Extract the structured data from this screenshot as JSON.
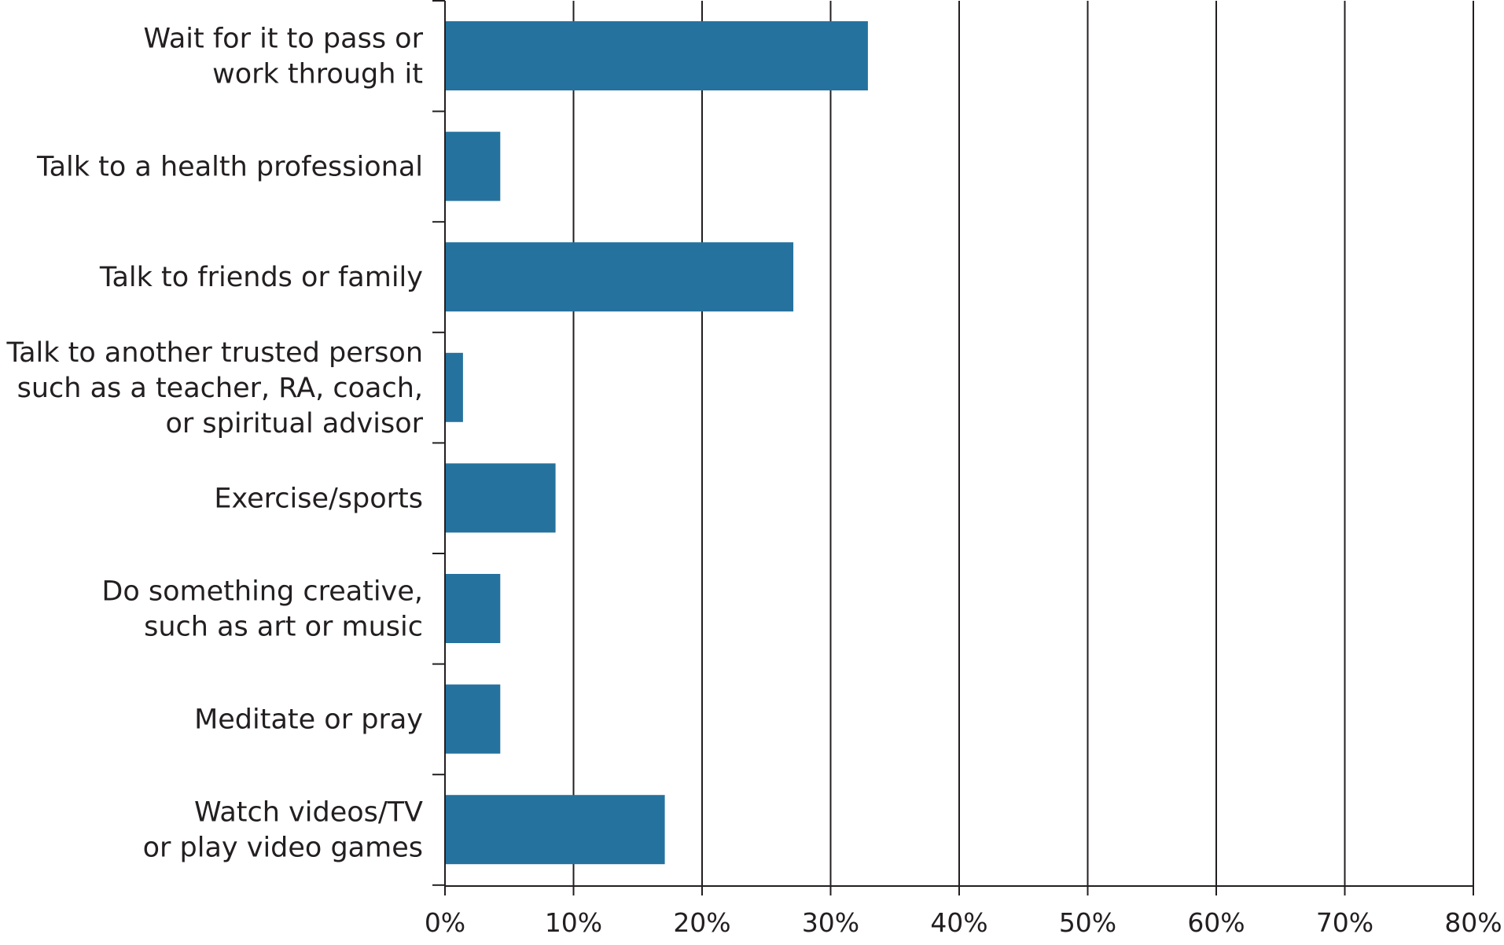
{
  "chart_data": {
    "type": "bar",
    "orientation": "horizontal",
    "categories": [
      [
        "Wait for it to pass or",
        "work through it"
      ],
      [
        "Talk to a health professional"
      ],
      [
        "Talk to friends or family"
      ],
      [
        "Talk to another trusted person",
        "such as a teacher, RA, coach,",
        "or spiritual advisor"
      ],
      [
        "Exercise/sports"
      ],
      [
        "Do something creative,",
        "such as art or music"
      ],
      [
        "Meditate or pray"
      ],
      [
        "Watch videos/TV",
        "or play video games"
      ]
    ],
    "values": [
      32.9,
      4.3,
      27.1,
      1.4,
      8.6,
      4.3,
      4.3,
      17.1
    ],
    "xlim": [
      0,
      80
    ],
    "xticks": [
      0,
      10,
      20,
      30,
      40,
      50,
      60,
      70,
      80
    ],
    "xtick_labels": [
      "0%",
      "10%",
      "20%",
      "30%",
      "40%",
      "50%",
      "60%",
      "70%",
      "80%"
    ],
    "grid": "vertical",
    "bar_color": "#25729e",
    "axis_color": "#231f20",
    "legend": "none"
  }
}
